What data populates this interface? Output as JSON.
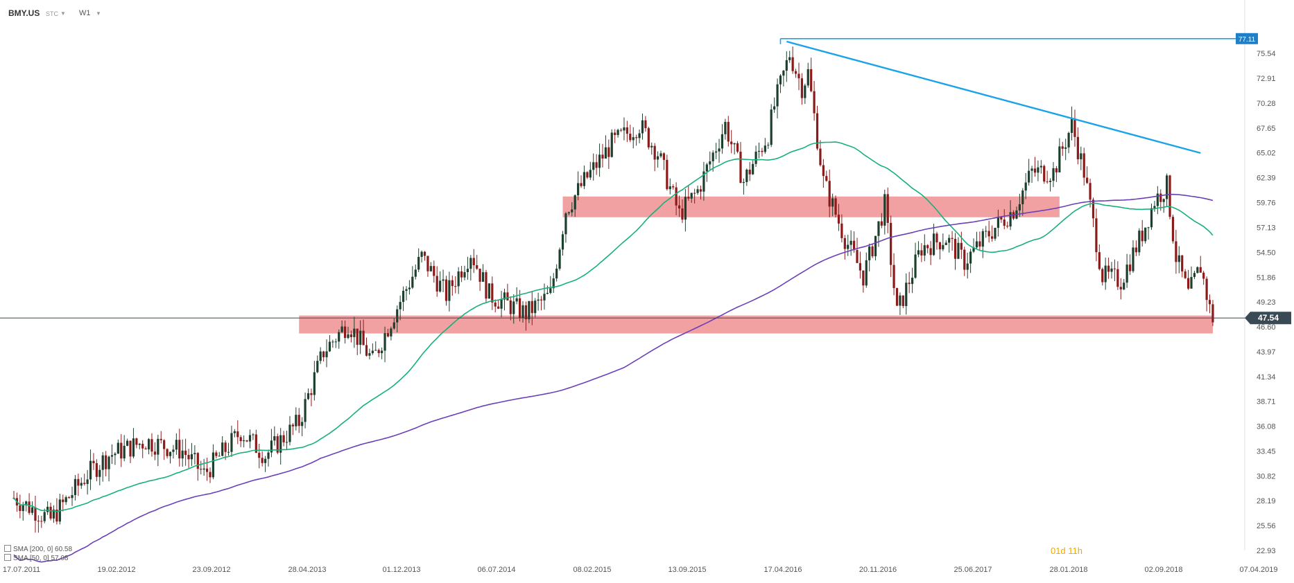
{
  "header": {
    "symbol": "BMY.US",
    "instrument_type": "STC",
    "timeframe": "W1"
  },
  "indicators": [
    {
      "label": "SMA [200, 0] 60.58",
      "color": "#6a3fb8"
    },
    {
      "label": "SMA [50, 0] 57.08",
      "color": "#17b07a"
    }
  ],
  "countdown": "01d 11h",
  "colors": {
    "up_candle": "#1d3f2e",
    "down_candle": "#8b1a1a",
    "zone": "#ee8a8a",
    "trendline": "#1aa3e8",
    "price_line": "#2f4a5e",
    "price_badge": "#3a4a55",
    "resistance_badge": "#1f7fc7"
  },
  "chart_data": {
    "type": "candlestick",
    "ylim": [
      22.93,
      79.0
    ],
    "y_ticks": [
      "75.54",
      "72.91",
      "70.28",
      "67.65",
      "65.02",
      "62.39",
      "59.76",
      "57.13",
      "54.50",
      "51.86",
      "49.23",
      "46.60",
      "43.97",
      "41.34",
      "38.71",
      "36.08",
      "33.45",
      "30.82",
      "28.19",
      "25.56",
      "22.93"
    ],
    "x_ticks": [
      "17.07.2011",
      "19.02.2012",
      "23.09.2012",
      "28.04.2013",
      "01.12.2013",
      "06.07.2014",
      "08.02.2015",
      "13.09.2015",
      "17.04.2016",
      "20.11.2016",
      "25.06.2017",
      "28.01.2018",
      "02.09.2018",
      "07.04.2019"
    ],
    "current_price": "47.54",
    "resistance_level": "77.11",
    "zones": [
      {
        "x_start": "2013-04-28",
        "x_end": "2019-01-13",
        "low": 45.9,
        "high": 47.8
      },
      {
        "x_start": "2014-12-21",
        "x_end": "2018-01-28",
        "low": 58.2,
        "high": 60.4
      }
    ],
    "trendline": {
      "start": [
        "2016-05-15",
        76.8
      ],
      "end": [
        "2018-12-16",
        65.0
      ]
    },
    "resistance_line": {
      "start": "2016-05-01",
      "value": 77.11
    },
    "anchors": [
      [
        "2011-07-17",
        28.5
      ],
      [
        "2011-10-09",
        26.2
      ],
      [
        "2012-01-01",
        31.0
      ],
      [
        "2012-02-19",
        33.0
      ],
      [
        "2012-05-13",
        34.5
      ],
      [
        "2012-08-05",
        33.5
      ],
      [
        "2012-09-23",
        31.0
      ],
      [
        "2012-12-16",
        35.5
      ],
      [
        "2013-02-10",
        33.0
      ],
      [
        "2013-04-28",
        36.5
      ],
      [
        "2013-06-23",
        44.0
      ],
      [
        "2013-08-18",
        47.0
      ],
      [
        "2013-10-13",
        43.0
      ],
      [
        "2013-12-01",
        48.0
      ],
      [
        "2014-02-02",
        54.0
      ],
      [
        "2014-03-30",
        50.0
      ],
      [
        "2014-05-25",
        54.5
      ],
      [
        "2014-07-06",
        50.0
      ],
      [
        "2014-09-28",
        48.0
      ],
      [
        "2014-11-23",
        50.0
      ],
      [
        "2014-12-28",
        59.0
      ],
      [
        "2015-02-08",
        62.0
      ],
      [
        "2015-04-12",
        66.0
      ],
      [
        "2015-06-14",
        68.0
      ],
      [
        "2015-07-26",
        65.0
      ],
      [
        "2015-09-13",
        58.5
      ],
      [
        "2015-10-25",
        61.0
      ],
      [
        "2015-12-27",
        68.0
      ],
      [
        "2016-02-07",
        62.0
      ],
      [
        "2016-04-03",
        67.0
      ],
      [
        "2016-04-17",
        70.0
      ],
      [
        "2016-05-22",
        75.5
      ],
      [
        "2016-06-19",
        72.0
      ],
      [
        "2016-07-03",
        73.5
      ],
      [
        "2016-08-07",
        62.0
      ],
      [
        "2016-09-25",
        56.0
      ],
      [
        "2016-11-06",
        52.0
      ],
      [
        "2016-11-20",
        54.0
      ],
      [
        "2016-12-25",
        59.5
      ],
      [
        "2017-01-22",
        48.0
      ],
      [
        "2017-03-19",
        55.0
      ],
      [
        "2017-05-14",
        56.0
      ],
      [
        "2017-06-25",
        53.5
      ],
      [
        "2017-08-20",
        56.5
      ],
      [
        "2017-10-15",
        59.0
      ],
      [
        "2017-11-26",
        63.0
      ],
      [
        "2018-01-14",
        63.0
      ],
      [
        "2018-02-25",
        68.0
      ],
      [
        "2018-03-25",
        63.0
      ],
      [
        "2018-05-06",
        52.0
      ],
      [
        "2018-06-17",
        51.5
      ],
      [
        "2018-08-05",
        56.5
      ],
      [
        "2018-09-02",
        60.0
      ],
      [
        "2018-09-30",
        61.5
      ],
      [
        "2018-10-21",
        54.0
      ],
      [
        "2018-11-18",
        50.0
      ],
      [
        "2018-12-16",
        53.0
      ],
      [
        "2019-01-06",
        48.5
      ],
      [
        "2019-01-13",
        47.54
      ]
    ]
  }
}
